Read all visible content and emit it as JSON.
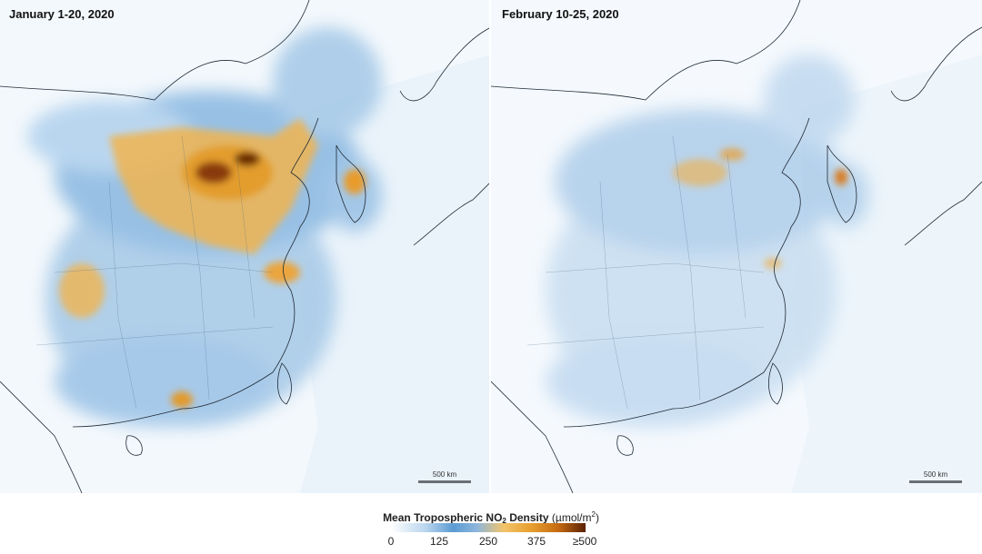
{
  "panels": [
    {
      "title": "January 1-20, 2020",
      "scale_label": "500 km"
    },
    {
      "title": "February 10-25, 2020",
      "scale_label": "500 km"
    }
  ],
  "legend": {
    "title_main": "Mean Tropospheric NO",
    "title_sub": "2",
    "title_rest": " Density",
    "units": "(µmol/m",
    "units_sup": "2",
    "units_close": ")",
    "ticks": [
      "0",
      "125",
      "250",
      "375",
      "≥500"
    ],
    "colors": [
      "#ffffff",
      "#5b9bd3",
      "#f2c46a",
      "#e79f2f",
      "#5a2205"
    ]
  }
}
